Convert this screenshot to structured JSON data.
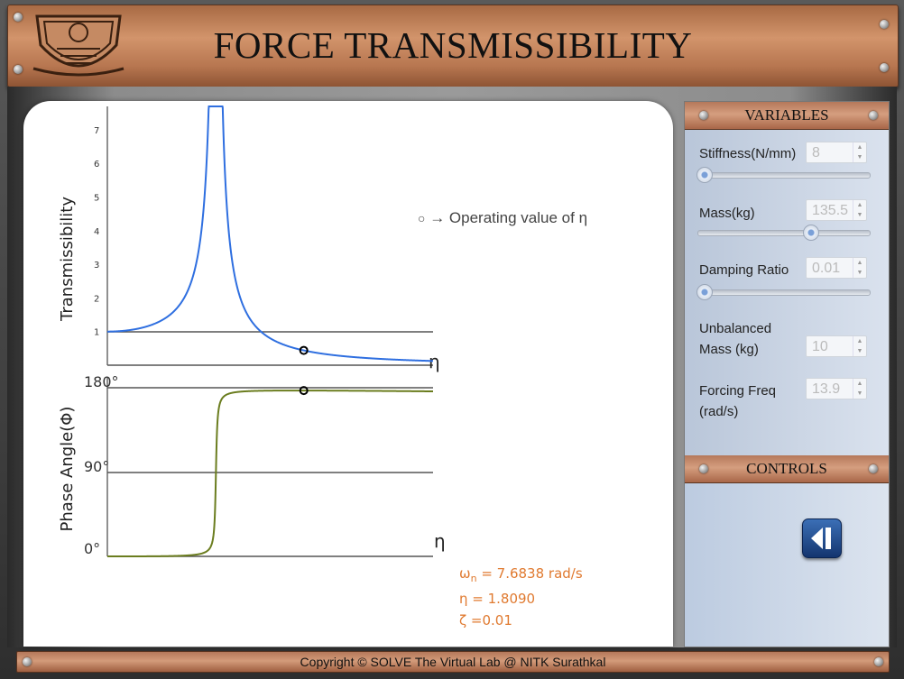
{
  "header": {
    "title": "FORCE TRANSMISSIBILITY"
  },
  "plot": {
    "top_ylabel": "Transmissibility",
    "top_xlabel": "η",
    "top_ticks": [
      "1",
      "2",
      "3",
      "4",
      "5",
      "6",
      "7"
    ],
    "bottom_ylabel": "Phase Angle(Φ)",
    "bottom_xlabel": "η",
    "bottom_ticks": [
      "0°",
      "90°",
      "180°"
    ],
    "legend_symbol": "○",
    "legend_text": "→ Operating value of η",
    "curve_color_top": "#2f6fe0",
    "curve_color_bottom": "#6b7d1f"
  },
  "readouts": {
    "omega_sym": "ω",
    "omega_sub": "n",
    "omega_rest": " = 7.6838 rad/s",
    "eta": "η = 1.8090",
    "zeta": "ζ =0.01"
  },
  "variables": {
    "title": "VARIABLES",
    "stiffness": {
      "label": "Stiffness(N/mm)",
      "value": "8",
      "slider": 0.0
    },
    "mass": {
      "label": "Mass(kg)",
      "value": "135.5",
      "slider": 0.68
    },
    "damping": {
      "label": "Damping Ratio",
      "value": "0.01",
      "slider": 0.0
    },
    "unbalanced": {
      "label1": "Unbalanced",
      "label2": "Mass (kg)",
      "value": "10"
    },
    "forcing": {
      "label1": "Forcing Freq",
      "label2": "(rad/s)",
      "value": "13.9"
    }
  },
  "controls": {
    "title": "CONTROLS",
    "button_icon": "step-back-icon"
  },
  "footer": {
    "text": "Copyright © SOLVE The Virtual Lab @ NITK Surathkal"
  },
  "chart_data": [
    {
      "type": "line",
      "title": "",
      "ylabel": "Transmissibility",
      "xlabel": "η",
      "ylim": [
        0,
        7.5
      ],
      "zeta": 0.01,
      "operating_eta": 1.809,
      "series": [
        {
          "values": "T(η) = sqrt(1+(2ζη)^2)/sqrt((1-η^2)^2+(2ζη)^2)"
        }
      ]
    },
    {
      "type": "line",
      "title": "",
      "ylabel": "Phase Angle(Φ)",
      "xlabel": "η",
      "ylim": [
        0,
        180
      ],
      "operating_eta": 1.809,
      "operating_phase": 179
    }
  ]
}
